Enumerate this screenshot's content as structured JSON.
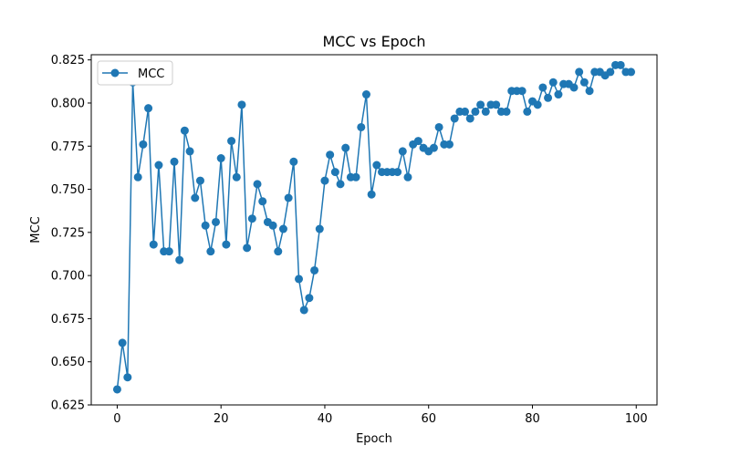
{
  "chart_data": {
    "type": "line",
    "title": "MCC vs Epoch",
    "xlabel": "Epoch",
    "ylabel": "MCC",
    "xlim": [
      -5,
      104
    ],
    "ylim": [
      0.625,
      0.828
    ],
    "xticks": [
      0,
      20,
      40,
      60,
      80,
      100
    ],
    "yticks": [
      0.625,
      0.65,
      0.675,
      0.7,
      0.725,
      0.75,
      0.775,
      0.8,
      0.825
    ],
    "legend_position": "top-left",
    "grid": false,
    "series": [
      {
        "name": "MCC",
        "color": "#1f77b4",
        "marker": "circle",
        "x": [
          0,
          1,
          2,
          3,
          4,
          5,
          6,
          7,
          8,
          9,
          10,
          11,
          12,
          13,
          14,
          15,
          16,
          17,
          18,
          19,
          20,
          21,
          22,
          23,
          24,
          25,
          26,
          27,
          28,
          29,
          30,
          31,
          32,
          33,
          34,
          35,
          36,
          37,
          38,
          39,
          40,
          41,
          42,
          43,
          44,
          45,
          46,
          47,
          48,
          49,
          50,
          51,
          52,
          53,
          54,
          55,
          56,
          57,
          58,
          59,
          60,
          61,
          62,
          63,
          64,
          65,
          66,
          67,
          68,
          69,
          70,
          71,
          72,
          73,
          74,
          75,
          76,
          77,
          78,
          79,
          80,
          81,
          82,
          83,
          84,
          85,
          86,
          87,
          88,
          89,
          90,
          91,
          92,
          93,
          94,
          95,
          96,
          97,
          98,
          99
        ],
        "y": [
          0.634,
          0.661,
          0.641,
          0.812,
          0.757,
          0.776,
          0.797,
          0.718,
          0.764,
          0.714,
          0.714,
          0.766,
          0.709,
          0.784,
          0.772,
          0.745,
          0.755,
          0.729,
          0.714,
          0.731,
          0.768,
          0.718,
          0.778,
          0.757,
          0.799,
          0.716,
          0.733,
          0.753,
          0.743,
          0.731,
          0.729,
          0.714,
          0.727,
          0.745,
          0.766,
          0.698,
          0.68,
          0.687,
          0.703,
          0.727,
          0.755,
          0.77,
          0.76,
          0.753,
          0.774,
          0.757,
          0.757,
          0.786,
          0.805,
          0.747,
          0.764,
          0.76,
          0.76,
          0.76,
          0.76,
          0.772,
          0.757,
          0.776,
          0.778,
          0.774,
          0.772,
          0.774,
          0.786,
          0.776,
          0.776,
          0.791,
          0.795,
          0.795,
          0.791,
          0.795,
          0.799,
          0.795,
          0.799,
          0.799,
          0.795,
          0.795,
          0.807,
          0.807,
          0.807,
          0.795,
          0.801,
          0.799,
          0.809,
          0.803,
          0.812,
          0.805,
          0.811,
          0.811,
          0.809,
          0.818,
          0.812,
          0.807,
          0.818,
          0.818,
          0.816,
          0.818,
          0.822,
          0.822,
          0.818,
          0.818
        ]
      }
    ]
  }
}
